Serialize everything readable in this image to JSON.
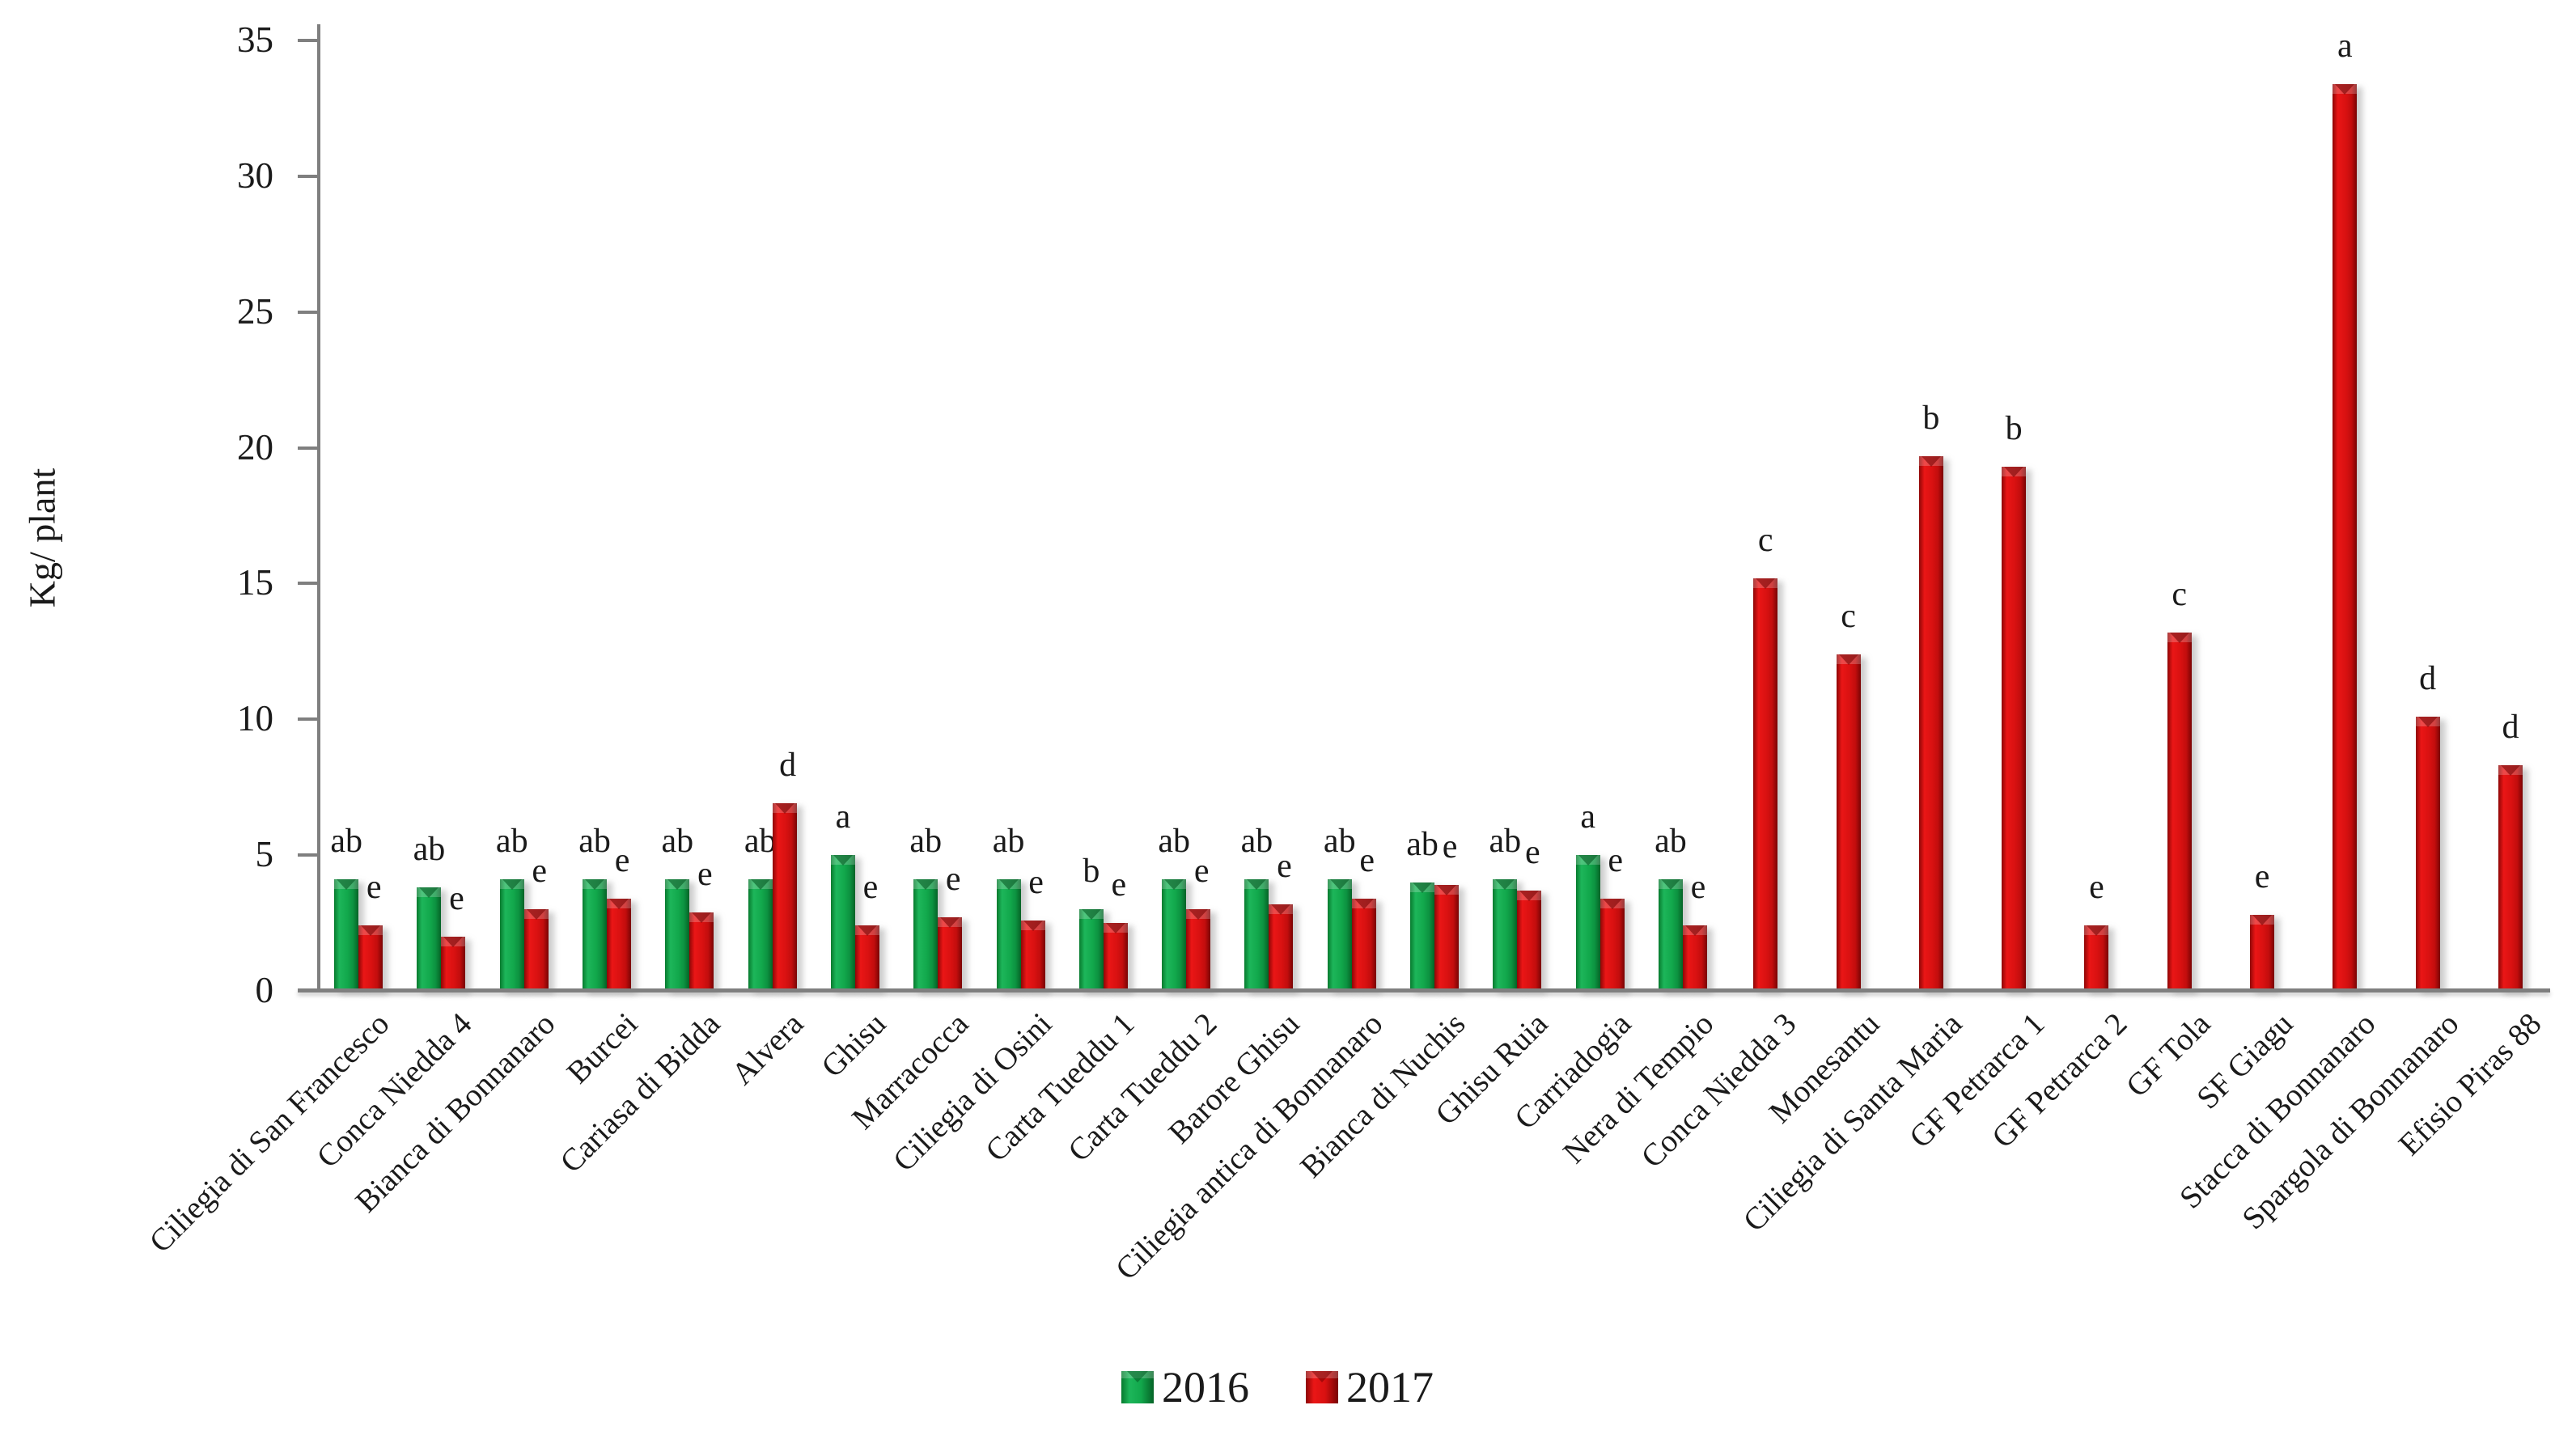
{
  "chart_data": {
    "type": "bar",
    "title": "",
    "ylabel": "Kg/ plant",
    "xlabel": "",
    "ylim": [
      0,
      35
    ],
    "yticks": [
      0,
      5,
      10,
      15,
      20,
      25,
      30,
      35
    ],
    "grid": false,
    "legend_position": "bottom-center",
    "bar_colors": {
      "2016": "#12a84c",
      "2017": "#d81111"
    },
    "categories": [
      "Ciliegia di San Francesco",
      "Conca Niedda 4",
      "Bianca di Bonnanaro",
      "Burcei",
      "Cariasa di Bidda",
      "Alvera",
      "Ghisu",
      "Marracocca",
      "Ciliegia di Osini",
      "Carta Tueddu 1",
      "Carta Tueddu 2",
      "Barore Ghisu",
      "Ciliegia antica di Bonnanaro",
      "Bianca di Nuchis",
      "Ghisu Ruia",
      "Carriadogia",
      "Nera di Tempio",
      "Conca Niedda 3",
      "Monesantu",
      "Ciliegia di Santa Maria",
      "GF Petrarca 1",
      "GF Petrarca 2",
      "GF Tola",
      "SF Giagu",
      "Stacca di Bonnanaro",
      "Spargola di Bonnanaro",
      "Efisio Piras 88"
    ],
    "series": [
      {
        "name": "2016",
        "values": [
          4.1,
          3.8,
          4.1,
          4.1,
          4.1,
          4.1,
          5.0,
          4.1,
          4.1,
          3.0,
          4.1,
          4.1,
          4.1,
          4.0,
          4.1,
          5.0,
          4.1,
          null,
          null,
          null,
          null,
          null,
          null,
          null,
          null,
          null,
          null
        ],
        "letters": [
          "ab",
          "ab",
          "ab",
          "ab",
          "ab",
          "ab",
          "a",
          "ab",
          "ab",
          "b",
          "ab",
          "ab",
          "ab",
          "ab",
          "ab",
          "a",
          "ab",
          "",
          "",
          "",
          "",
          "",
          "",
          "",
          "",
          "",
          ""
        ]
      },
      {
        "name": "2017",
        "values": [
          2.4,
          2.0,
          3.0,
          3.4,
          2.9,
          6.9,
          2.4,
          2.7,
          2.6,
          2.5,
          3.0,
          3.2,
          3.4,
          3.9,
          3.7,
          3.4,
          2.4,
          15.2,
          12.4,
          19.7,
          19.3,
          2.4,
          13.2,
          2.8,
          33.4,
          10.1,
          8.3
        ],
        "letters": [
          "e",
          "e",
          "e",
          "e",
          "e",
          "d",
          "e",
          "e",
          "e",
          "e",
          "e",
          "e",
          "e",
          "e",
          "e",
          "e",
          "e",
          "c",
          "c",
          "b",
          "b",
          "e",
          "c",
          "e",
          "a",
          "d",
          "d"
        ]
      }
    ],
    "legend": [
      "2016",
      "2017"
    ]
  },
  "layout_text": {
    "y_axis_title": "Kg/ plant",
    "legend_2016": "2016",
    "legend_2017": "2017"
  }
}
